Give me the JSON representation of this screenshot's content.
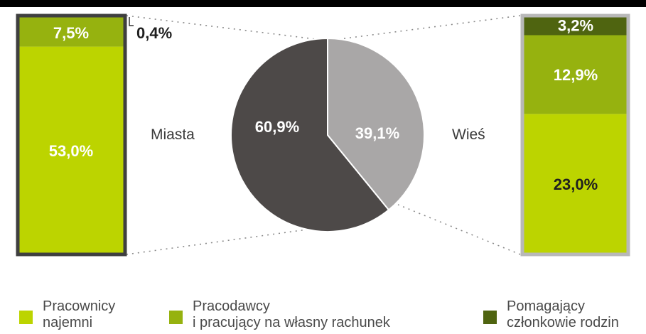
{
  "colors": {
    "employees": "#bcd400",
    "employers": "#96b20f",
    "helpers": "#4f6410",
    "city_pie": "#4d4948",
    "village_pie": "#a9a7a7",
    "left_frame": "#3f3f3f",
    "right_frame": "#b8b8b8"
  },
  "chart_data": [
    {
      "type": "pie",
      "slices": [
        {
          "name": "Miasta",
          "value": 60.9,
          "label": "60,9%"
        },
        {
          "name": "Wieś",
          "value": 39.1,
          "label": "39,1%"
        }
      ],
      "title": ""
    },
    {
      "type": "bar",
      "stacked": true,
      "name": "Miasta",
      "segments": [
        {
          "series": "Pracownicy najemni",
          "value": 53.0,
          "label": "53,0%"
        },
        {
          "series": "Pracodawcy i pracujący na własny rachunek",
          "value": 7.5,
          "label": "7,5%"
        },
        {
          "series": "Pomagający członkowie rodzin",
          "value": 0.4,
          "label": "0,4%"
        }
      ]
    },
    {
      "type": "bar",
      "stacked": true,
      "name": "Wieś",
      "segments": [
        {
          "series": "Pracownicy najemni",
          "value": 23.0,
          "label": "23,0%"
        },
        {
          "series": "Pracodawcy i pracujący na własny rachunek",
          "value": 12.9,
          "label": "12,9%"
        },
        {
          "series": "Pomagający członkowie rodzin",
          "value": 3.2,
          "label": "3,2%"
        }
      ]
    }
  ],
  "legend": [
    {
      "line1": "Pracownicy",
      "line2": "najemni"
    },
    {
      "line1": "Pracodawcy",
      "line2": "i pracujący na własny rachunek"
    },
    {
      "line1": "Pomagający",
      "line2": "członkowie rodzin"
    }
  ]
}
